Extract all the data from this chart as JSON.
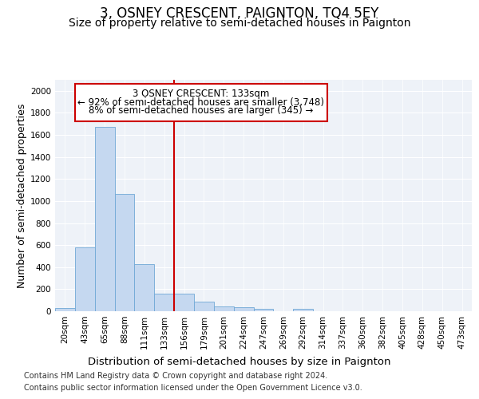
{
  "title": "3, OSNEY CRESCENT, PAIGNTON, TQ4 5EY",
  "subtitle": "Size of property relative to semi-detached houses in Paignton",
  "xlabel": "Distribution of semi-detached houses by size in Paignton",
  "ylabel": "Number of semi-detached properties",
  "categories": [
    "20sqm",
    "43sqm",
    "65sqm",
    "88sqm",
    "111sqm",
    "133sqm",
    "156sqm",
    "179sqm",
    "201sqm",
    "224sqm",
    "247sqm",
    "269sqm",
    "292sqm",
    "314sqm",
    "337sqm",
    "360sqm",
    "382sqm",
    "405sqm",
    "428sqm",
    "450sqm",
    "473sqm"
  ],
  "values": [
    30,
    580,
    1670,
    1065,
    430,
    160,
    160,
    90,
    40,
    35,
    20,
    0,
    20,
    0,
    0,
    0,
    0,
    0,
    0,
    0,
    0
  ],
  "bar_color": "#c5d8f0",
  "bar_edge_color": "#6fa8d6",
  "vline_index": 5,
  "vline_color": "#cc0000",
  "annotation_line1": "3 OSNEY CRESCENT: 133sqm",
  "annotation_line2": "← 92% of semi-detached houses are smaller (3,748)",
  "annotation_line3": "8% of semi-detached houses are larger (345) →",
  "annotation_box_color": "#ffffff",
  "annotation_box_edge_color": "#cc0000",
  "ylim": [
    0,
    2100
  ],
  "yticks": [
    0,
    200,
    400,
    600,
    800,
    1000,
    1200,
    1400,
    1600,
    1800,
    2000
  ],
  "footer_line1": "Contains HM Land Registry data © Crown copyright and database right 2024.",
  "footer_line2": "Contains public sector information licensed under the Open Government Licence v3.0.",
  "bg_color": "#eef2f8",
  "title_fontsize": 12,
  "subtitle_fontsize": 10,
  "axis_label_fontsize": 9,
  "tick_fontsize": 7.5,
  "annotation_fontsize": 8.5,
  "footer_fontsize": 7
}
